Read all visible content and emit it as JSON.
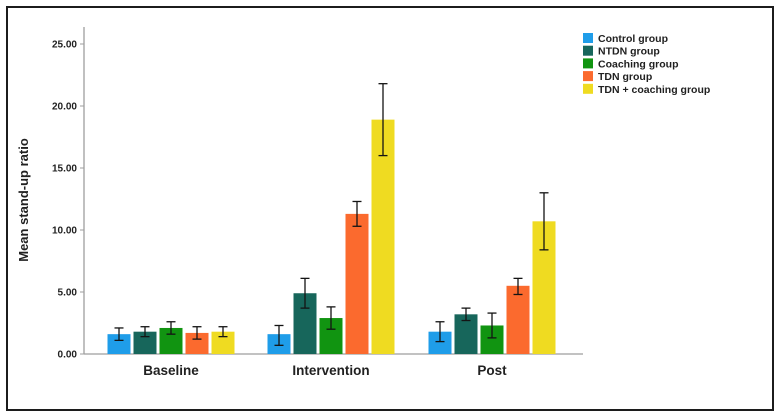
{
  "figure": {
    "background": "#ffffff",
    "border_color": "#1c1c1c"
  },
  "chart_data": {
    "type": "bar",
    "title": "",
    "xlabel": "",
    "ylabel": "Mean stand-up ratio",
    "categories": [
      "Baseline",
      "Intervention",
      "Post"
    ],
    "series": [
      {
        "name": "Control group",
        "color": "#1F9DE9",
        "values": [
          1.6,
          1.6,
          1.8
        ],
        "errors": [
          [
            1.1,
            2.1
          ],
          [
            0.7,
            2.3
          ],
          [
            1.0,
            2.6
          ]
        ]
      },
      {
        "name": "NTDN group",
        "color": "#17665B",
        "values": [
          1.8,
          4.9,
          3.2
        ],
        "errors": [
          [
            1.4,
            2.2
          ],
          [
            3.7,
            6.1
          ],
          [
            2.7,
            3.7
          ]
        ]
      },
      {
        "name": "Coaching group",
        "color": "#119411",
        "values": [
          2.1,
          2.9,
          2.3
        ],
        "errors": [
          [
            1.6,
            2.6
          ],
          [
            2.0,
            3.8
          ],
          [
            1.3,
            3.3
          ]
        ]
      },
      {
        "name": "TDN group",
        "color": "#FB6A2E",
        "values": [
          1.7,
          11.3,
          5.5
        ],
        "errors": [
          [
            1.2,
            2.2
          ],
          [
            10.3,
            12.3
          ],
          [
            4.8,
            6.1
          ]
        ]
      },
      {
        "name": "TDN + coaching group",
        "color": "#EFDB21",
        "values": [
          1.8,
          18.9,
          10.7
        ],
        "errors": [
          [
            1.4,
            2.2
          ],
          [
            16.0,
            21.8
          ],
          [
            8.4,
            13.0
          ]
        ]
      }
    ],
    "yticks": [
      {
        "value": 0,
        "label": "0.00"
      },
      {
        "value": 5,
        "label": "5.00"
      },
      {
        "value": 10,
        "label": "10.00"
      },
      {
        "value": 15,
        "label": "15.00"
      },
      {
        "value": 20,
        "label": "20.00"
      },
      {
        "value": 25,
        "label": "25.00"
      }
    ],
    "ylim": [
      0,
      26.5
    ],
    "grid": false,
    "error_bars": true,
    "legend_position": "top-right",
    "axis_color": "#9e9e9e",
    "error_bar_color": "#141414",
    "text_color": "#212121"
  }
}
